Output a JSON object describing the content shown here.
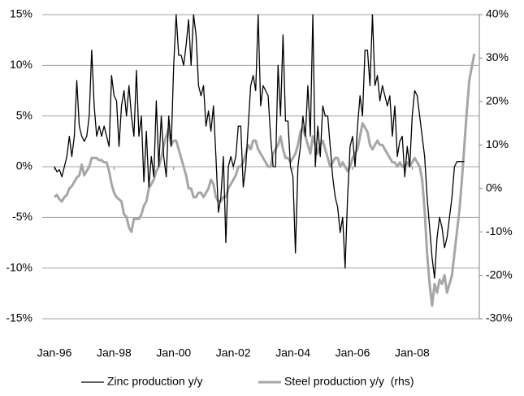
{
  "chart_data": {
    "type": "line",
    "categories": [
      "Jan-96",
      null,
      null,
      null,
      null,
      null,
      null,
      null,
      null,
      null,
      null,
      null,
      null,
      null,
      null,
      null,
      null,
      null,
      null,
      null,
      null,
      null,
      null,
      null,
      "Jan-98",
      null,
      null,
      null,
      null,
      null,
      null,
      null,
      null,
      null,
      null,
      null,
      null,
      null,
      null,
      null,
      null,
      null,
      null,
      null,
      null,
      null,
      null,
      null,
      "Jan-00",
      null,
      null,
      null,
      null,
      null,
      null,
      null,
      null,
      null,
      null,
      null,
      null,
      null,
      null,
      null,
      null,
      null,
      null,
      null,
      null,
      null,
      null,
      null,
      "Jan-02",
      null,
      null,
      null,
      null,
      null,
      null,
      null,
      null,
      null,
      null,
      null,
      null,
      null,
      null,
      null,
      null,
      null,
      null,
      null,
      null,
      null,
      null,
      null,
      "Jan-04",
      null,
      null,
      null,
      null,
      null,
      null,
      null,
      null,
      null,
      null,
      null,
      null,
      null,
      null,
      null,
      null,
      null,
      null,
      null,
      null,
      null,
      null,
      null,
      "Jan-06",
      null,
      null,
      null,
      null,
      null,
      null,
      null,
      null,
      null,
      null,
      null,
      null,
      null,
      null,
      null,
      null,
      null,
      null,
      null,
      null,
      null,
      null,
      null,
      "Jan-08",
      null,
      null,
      null,
      null,
      null,
      null,
      null,
      null,
      null,
      null,
      null,
      null,
      null,
      null,
      null,
      null,
      null,
      null,
      null,
      null,
      null,
      null,
      null,
      null,
      null
    ],
    "series": [
      {
        "name": "Zinc production y/y",
        "color": "#000000",
        "values": [
          0,
          -0.5,
          -0.3,
          -1,
          0,
          1,
          3,
          1,
          3,
          8.5,
          4,
          3,
          2.5,
          3,
          5,
          11.5,
          6,
          3,
          4,
          3,
          4,
          3,
          2,
          9,
          7,
          6.5,
          2,
          6,
          7.5,
          5,
          8,
          5,
          3,
          9.5,
          3,
          5,
          -1.5,
          3.5,
          -2,
          1,
          -1,
          6.5,
          0,
          5,
          1,
          -1,
          5,
          2,
          10,
          15,
          11,
          11,
          10,
          12,
          14.5,
          10,
          15,
          13,
          8,
          7,
          8,
          4,
          5.5,
          3.5,
          6,
          1,
          -4.5,
          -3,
          1,
          -7.5,
          0,
          1,
          0,
          1,
          4,
          4,
          -2,
          0,
          4,
          8,
          9,
          7.5,
          15,
          6,
          8,
          7.5,
          7,
          3,
          0,
          0,
          10,
          5,
          13,
          4.5,
          4.5,
          0,
          -1,
          -8.5,
          0,
          2,
          5,
          3,
          8,
          3,
          15,
          0,
          4,
          1,
          6,
          5,
          5,
          2,
          -1,
          -3,
          -4,
          -6.5,
          -5,
          -10,
          -3,
          2,
          3,
          0,
          4,
          7,
          5,
          11.5,
          11.5,
          8,
          15,
          8,
          9,
          6.5,
          8,
          7,
          6,
          7,
          3,
          6,
          1,
          2.5,
          3,
          -1,
          2,
          0,
          5,
          7.5,
          7,
          5,
          3,
          1,
          -3,
          -6,
          -9,
          -11,
          -7,
          -5,
          -6,
          -8,
          -7,
          -5,
          -3,
          0,
          0.5,
          0.5,
          0.5,
          0.5,
          null,
          null,
          null,
          null
        ]
      },
      {
        "name": "Steel production y/y  (rhs)",
        "color": "#a6a6a6",
        "axis": "y2",
        "values": [
          -2,
          -1.5,
          -2.5,
          -3,
          -2,
          -1.5,
          0,
          0.5,
          1.5,
          2.5,
          3,
          5.5,
          3,
          4,
          5,
          7,
          7,
          7,
          6.5,
          6.5,
          6,
          6,
          4,
          1,
          -1,
          -2,
          -2.5,
          -3,
          -6,
          -6.5,
          -9,
          -10,
          -7,
          -7,
          -7,
          -6,
          -4,
          -3,
          0,
          1,
          2,
          4,
          5,
          7,
          10,
          12,
          14,
          10,
          11,
          11,
          9,
          7,
          5,
          3,
          0,
          0,
          -2,
          -2,
          -1,
          -1,
          -2,
          -1,
          0,
          2,
          1,
          -2,
          -3,
          -3,
          -2,
          -2,
          0,
          1,
          2,
          3,
          5,
          5,
          6,
          8,
          10,
          9,
          11,
          11,
          9,
          8,
          7,
          6,
          5,
          5,
          8,
          9,
          10,
          12,
          9,
          7,
          7,
          6,
          7,
          8,
          10,
          13,
          14,
          12,
          10,
          8,
          12,
          10,
          8,
          10,
          11,
          9,
          7,
          5,
          6,
          7,
          7,
          5,
          6,
          5,
          4,
          5,
          7,
          8,
          9,
          12,
          15,
          14,
          13,
          10,
          9,
          10,
          11,
          10,
          10,
          9,
          8,
          7,
          6,
          6,
          5,
          6,
          5,
          5,
          6,
          5,
          6,
          7,
          6,
          5,
          2,
          -5,
          -15,
          -22,
          -27,
          -22,
          -24,
          -21,
          -22,
          -20,
          -24,
          -22,
          -20,
          -15,
          -10,
          -5,
          2,
          10,
          18,
          25,
          28,
          31
        ]
      }
    ],
    "ylim": [
      -15,
      15
    ],
    "yticks": [
      {
        "value": -15,
        "label": "-15%"
      },
      {
        "value": -10,
        "label": "-10%"
      },
      {
        "value": -5,
        "label": "-5%"
      },
      {
        "value": 0,
        "label": "0%"
      },
      {
        "value": 5,
        "label": "5%"
      },
      {
        "value": 10,
        "label": "10%"
      },
      {
        "value": 15,
        "label": "15%"
      }
    ],
    "y2lim": [
      -30,
      40
    ],
    "y2ticks": [
      {
        "value": -30,
        "label": "-30%"
      },
      {
        "value": -20,
        "label": "-20%"
      },
      {
        "value": -10,
        "label": "-10%"
      },
      {
        "value": 0,
        "label": "0%"
      },
      {
        "value": 10,
        "label": "10%"
      },
      {
        "value": 20,
        "label": "20%"
      },
      {
        "value": 30,
        "label": "30%"
      },
      {
        "value": 40,
        "label": "40%"
      }
    ],
    "grid": true,
    "legend": "bottom"
  }
}
